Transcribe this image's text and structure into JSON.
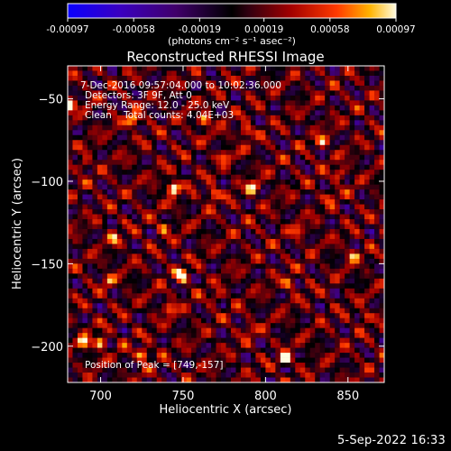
{
  "colorbar": {
    "tick_labels": [
      "-0.00097",
      "-0.00058",
      "-0.00019",
      "0.00019",
      "0.00058",
      "0.00097"
    ],
    "ticks": [
      -0.00097,
      -0.00058,
      -0.00019,
      0.00019,
      0.00058,
      0.00097
    ],
    "range": [
      -0.00097,
      0.00097
    ],
    "units": "(photons cm⁻² s⁻¹ asec⁻²)"
  },
  "chart_data": {
    "type": "heatmap",
    "title": "Reconstructed RHESSI Image",
    "xlabel": "Heliocentric X (arcsec)",
    "ylabel": "Heliocentric Y (arcsec)",
    "xlim": [
      680,
      872
    ],
    "ylim": [
      -222,
      -30
    ],
    "xticks": [
      700,
      750,
      800,
      850
    ],
    "yticks": [
      -50,
      -100,
      -150,
      -200
    ],
    "xtick_labels": [
      "700",
      "750",
      "800",
      "850"
    ],
    "ytick_labels": [
      "−50",
      "−100",
      "−150",
      "−200"
    ],
    "annotations": [
      "7-Dec-2016 09:57:04.000 to 10:02:36.000",
      "Detectors: 3F 9F, Att 0",
      "Energy Range: 12.0 - 25.0 keV",
      "Clean    Total counts: 4.04E+03"
    ],
    "peak_label": "Position of Peak = [749,-157]",
    "peak_position": [
      749,
      -157
    ],
    "hotspots": [
      {
        "x": 749,
        "y": -157,
        "v": 1.0
      },
      {
        "x": 744,
        "y": -104,
        "v": 0.95
      },
      {
        "x": 812,
        "y": -208,
        "v": 0.9
      },
      {
        "x": 720,
        "y": -63,
        "v": 0.85
      },
      {
        "x": 681,
        "y": -54,
        "v": 0.85
      },
      {
        "x": 726,
        "y": -205,
        "v": 0.8
      },
      {
        "x": 763,
        "y": -63,
        "v": 0.75
      },
      {
        "x": 792,
        "y": -104,
        "v": 0.7
      },
      {
        "x": 768,
        "y": -108,
        "v": 0.7
      },
      {
        "x": 690,
        "y": -198,
        "v": 0.7
      },
      {
        "x": 700,
        "y": -198,
        "v": 0.7
      },
      {
        "x": 788,
        "y": -70,
        "v": 0.65
      },
      {
        "x": 834,
        "y": -76,
        "v": 0.6
      },
      {
        "x": 742,
        "y": -177,
        "v": 0.6
      },
      {
        "x": 815,
        "y": -162,
        "v": 0.55
      },
      {
        "x": 853,
        "y": -145,
        "v": 0.55
      },
      {
        "x": 845,
        "y": -95,
        "v": 0.55
      },
      {
        "x": 708,
        "y": -135,
        "v": 0.5
      },
      {
        "x": 738,
        "y": -128,
        "v": 0.5
      },
      {
        "x": 775,
        "y": -85,
        "v": 0.5
      },
      {
        "x": 860,
        "y": -182,
        "v": 0.5
      },
      {
        "x": 690,
        "y": -90,
        "v": 0.45
      },
      {
        "x": 820,
        "y": -130,
        "v": 0.45
      },
      {
        "x": 705,
        "y": -160,
        "v": 0.45
      },
      {
        "x": 770,
        "y": -170,
        "v": 0.4
      },
      {
        "x": 790,
        "y": -190,
        "v": 0.4
      },
      {
        "x": 840,
        "y": -110,
        "v": 0.4
      }
    ]
  },
  "timestamp": "5-Sep-2022 16:33"
}
